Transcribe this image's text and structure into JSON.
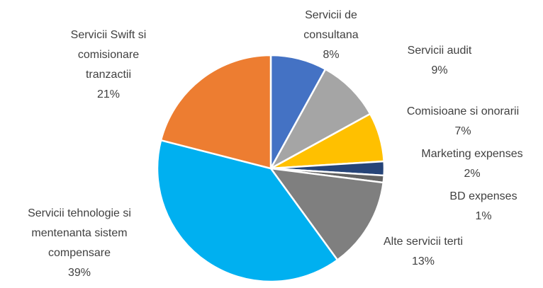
{
  "chart_data": {
    "type": "pie",
    "categories": [
      "Servicii de consultana",
      "Servicii audit",
      "Comisioane si onorarii",
      "Marketing expenses",
      "BD expenses",
      "Alte servicii terti",
      "Servicii tehnologie si mentenanta sistem compensare",
      "Servicii Swift si comisionare tranzactii"
    ],
    "values": [
      8,
      9,
      7,
      2,
      1,
      13,
      39,
      21
    ],
    "value_labels": [
      "8%",
      "9%",
      "7%",
      "2%",
      "1%",
      "13%",
      "39%",
      "21%"
    ],
    "colors": [
      "#4472c4",
      "#a5a5a5",
      "#ffc000",
      "#264478",
      "#636363",
      "#7f7f7f",
      "#00b0f0",
      "#ed7d31"
    ]
  }
}
